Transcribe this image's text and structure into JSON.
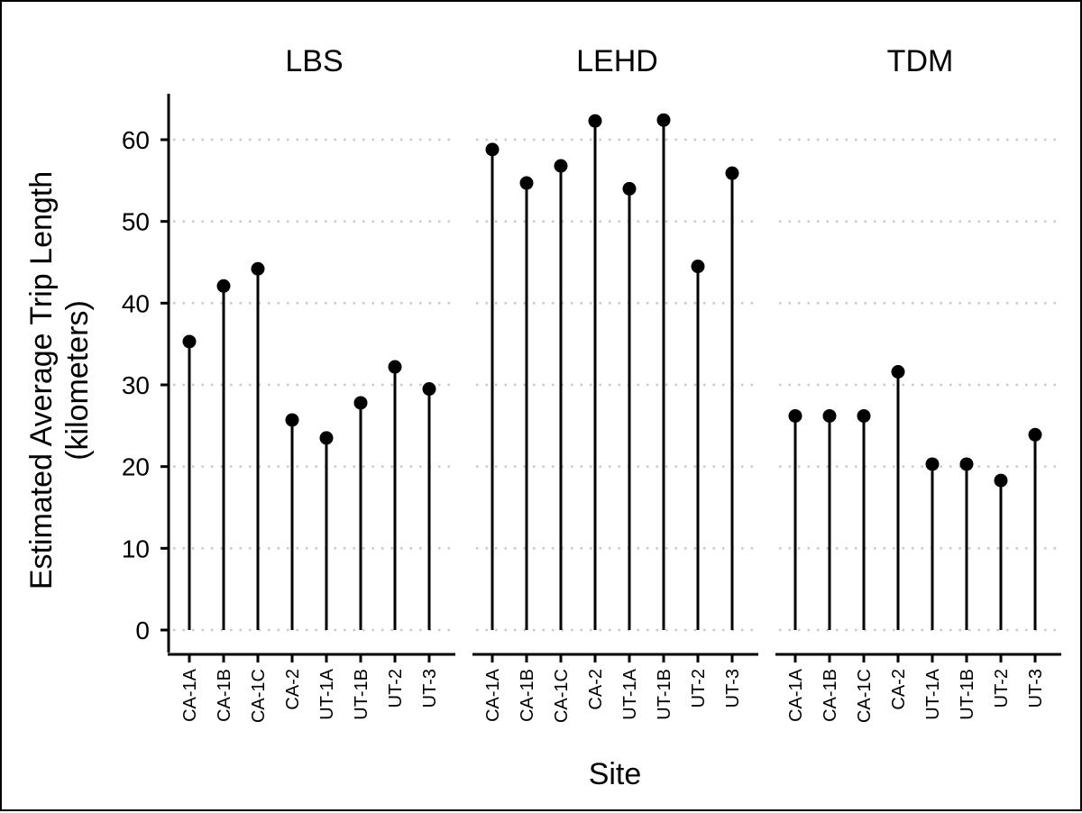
{
  "chart_data": {
    "type": "lollipop",
    "ylabel_line1": "Estimated Average Trip Length",
    "ylabel_line2": "(kilometers)",
    "xlabel": "Site",
    "ylim": [
      0,
      65
    ],
    "yticks": [
      0,
      10,
      20,
      30,
      40,
      50,
      60
    ],
    "grid": "horizontal dotted",
    "categories": [
      "CA-1A",
      "CA-1B",
      "CA-1C",
      "CA-2",
      "UT-1A",
      "UT-1B",
      "UT-2",
      "UT-3"
    ],
    "panels": [
      {
        "name": "LBS",
        "values": [
          35.3,
          42.1,
          44.2,
          25.7,
          23.5,
          27.8,
          32.2,
          29.5
        ]
      },
      {
        "name": "LEHD",
        "values": [
          58.8,
          54.7,
          56.8,
          62.3,
          54.0,
          62.4,
          44.5,
          55.9
        ]
      },
      {
        "name": "TDM",
        "values": [
          26.2,
          26.2,
          26.2,
          31.6,
          20.3,
          20.3,
          18.3,
          23.9
        ]
      }
    ]
  }
}
